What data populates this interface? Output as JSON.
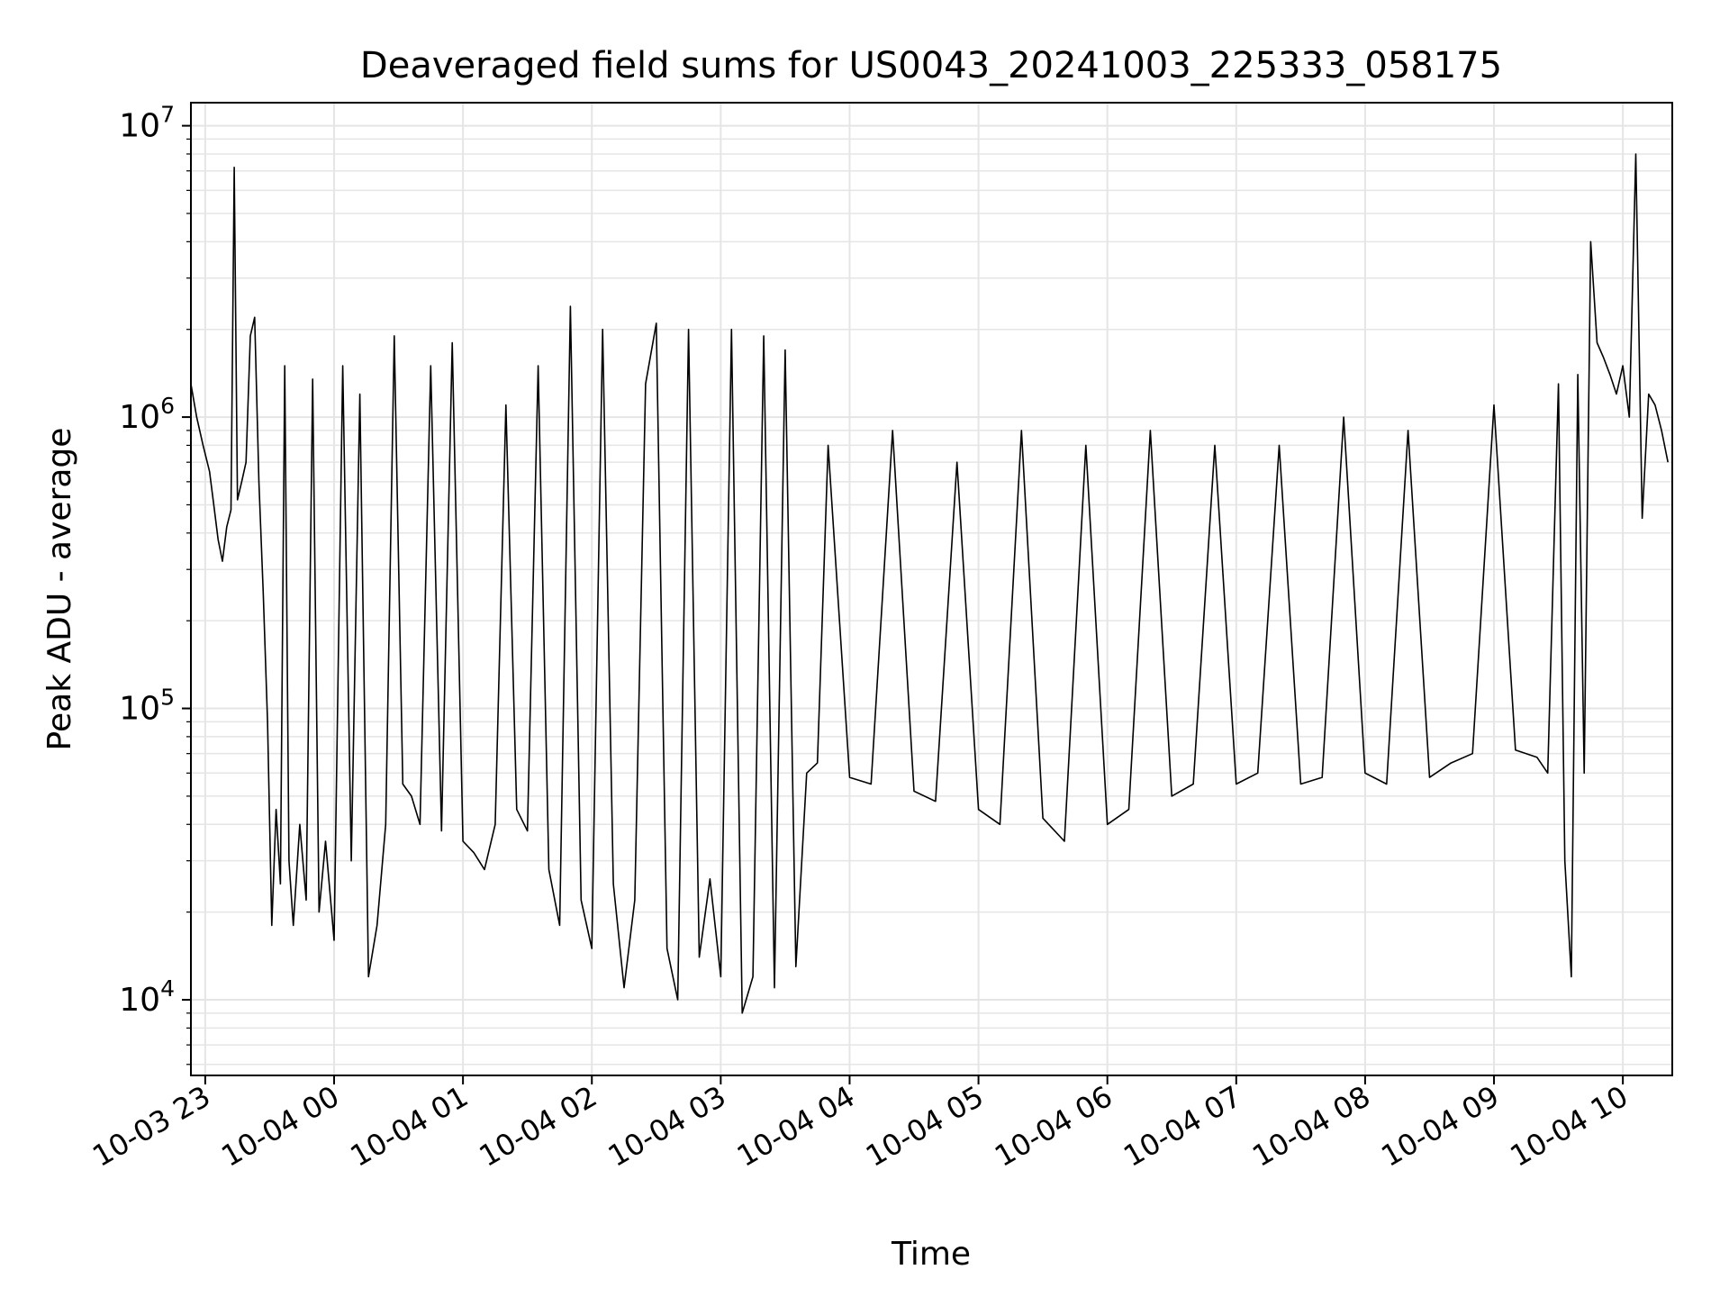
{
  "chart_data": {
    "type": "line",
    "title": "Deaveraged field sums for US0043_20241003_225333_058175",
    "xlabel": "Time",
    "ylabel": "Peak ADU - average",
    "yscale": "log",
    "ylim": [
      5500,
      12000000
    ],
    "xlim": [
      "2024-10-03 22:53:20",
      "2024-10-04 10:23:00"
    ],
    "x_ticks": [
      {
        "value": "2024-10-03 23:00",
        "label": "10-03 23"
      },
      {
        "value": "2024-10-04 00:00",
        "label": "10-04 00"
      },
      {
        "value": "2024-10-04 01:00",
        "label": "10-04 01"
      },
      {
        "value": "2024-10-04 02:00",
        "label": "10-04 02"
      },
      {
        "value": "2024-10-04 03:00",
        "label": "10-04 03"
      },
      {
        "value": "2024-10-04 04:00",
        "label": "10-04 04"
      },
      {
        "value": "2024-10-04 05:00",
        "label": "10-04 05"
      },
      {
        "value": "2024-10-04 06:00",
        "label": "10-04 06"
      },
      {
        "value": "2024-10-04 07:00",
        "label": "10-04 07"
      },
      {
        "value": "2024-10-04 08:00",
        "label": "10-04 08"
      },
      {
        "value": "2024-10-04 09:00",
        "label": "10-04 09"
      },
      {
        "value": "2024-10-04 10:00",
        "label": "10-04 10"
      }
    ],
    "y_ticks": [
      {
        "value": 10000,
        "base": "10",
        "exp": "4"
      },
      {
        "value": 100000,
        "base": "10",
        "exp": "5"
      },
      {
        "value": 1000000,
        "base": "10",
        "exp": "6"
      },
      {
        "value": 10000000,
        "base": "10",
        "exp": "7"
      }
    ],
    "grid": true,
    "minor_grid": true,
    "series_color": "#000000",
    "grid_color": "#e5e5e5",
    "series": [
      {
        "x": [
          "2024-10-03 22:53:20",
          "2024-10-03 22:56:00",
          "2024-10-03 22:59:00",
          "2024-10-03 23:02:00",
          "2024-10-03 23:04:00",
          "2024-10-03 23:06:00",
          "2024-10-03 23:08:00",
          "2024-10-03 23:10:00",
          "2024-10-03 23:12:00",
          "2024-10-03 23:13:30",
          "2024-10-03 23:15:00",
          "2024-10-03 23:17:00",
          "2024-10-03 23:19:00",
          "2024-10-03 23:21:00",
          "2024-10-03 23:23:00",
          "2024-10-03 23:25:00",
          "2024-10-03 23:27:00",
          "2024-10-03 23:29:00",
          "2024-10-03 23:31:00",
          "2024-10-03 23:33:00",
          "2024-10-03 23:35:00",
          "2024-10-03 23:37:00",
          "2024-10-03 23:39:00",
          "2024-10-03 23:41:00",
          "2024-10-03 23:44:00",
          "2024-10-03 23:47:00",
          "2024-10-03 23:50:00",
          "2024-10-03 23:53:00",
          "2024-10-03 23:56:00",
          "2024-10-04 00:00:00",
          "2024-10-04 00:04:00",
          "2024-10-04 00:08:00",
          "2024-10-04 00:12:00",
          "2024-10-04 00:16:00",
          "2024-10-04 00:20:00",
          "2024-10-04 00:24:00",
          "2024-10-04 00:28:00",
          "2024-10-04 00:32:00",
          "2024-10-04 00:36:00",
          "2024-10-04 00:40:00",
          "2024-10-04 00:45:00",
          "2024-10-04 00:50:00",
          "2024-10-04 00:55:00",
          "2024-10-04 01:00:00",
          "2024-10-04 01:05:00",
          "2024-10-04 01:10:00",
          "2024-10-04 01:15:00",
          "2024-10-04 01:20:00",
          "2024-10-04 01:25:00",
          "2024-10-04 01:30:00",
          "2024-10-04 01:35:00",
          "2024-10-04 01:40:00",
          "2024-10-04 01:45:00",
          "2024-10-04 01:50:00",
          "2024-10-04 01:55:00",
          "2024-10-04 02:00:00",
          "2024-10-04 02:05:00",
          "2024-10-04 02:10:00",
          "2024-10-04 02:15:00",
          "2024-10-04 02:20:00",
          "2024-10-04 02:25:00",
          "2024-10-04 02:30:00",
          "2024-10-04 02:35:00",
          "2024-10-04 02:40:00",
          "2024-10-04 02:45:00",
          "2024-10-04 02:50:00",
          "2024-10-04 02:55:00",
          "2024-10-04 03:00:00",
          "2024-10-04 03:05:00",
          "2024-10-04 03:10:00",
          "2024-10-04 03:15:00",
          "2024-10-04 03:20:00",
          "2024-10-04 03:25:00",
          "2024-10-04 03:30:00",
          "2024-10-04 03:35:00",
          "2024-10-04 03:40:00",
          "2024-10-04 03:45:00",
          "2024-10-04 03:50:00",
          "2024-10-04 04:00:00",
          "2024-10-04 04:10:00",
          "2024-10-04 04:20:00",
          "2024-10-04 04:30:00",
          "2024-10-04 04:40:00",
          "2024-10-04 04:50:00",
          "2024-10-04 05:00:00",
          "2024-10-04 05:10:00",
          "2024-10-04 05:20:00",
          "2024-10-04 05:30:00",
          "2024-10-04 05:40:00",
          "2024-10-04 05:50:00",
          "2024-10-04 06:00:00",
          "2024-10-04 06:10:00",
          "2024-10-04 06:20:00",
          "2024-10-04 06:30:00",
          "2024-10-04 06:40:00",
          "2024-10-04 06:50:00",
          "2024-10-04 07:00:00",
          "2024-10-04 07:10:00",
          "2024-10-04 07:20:00",
          "2024-10-04 07:30:00",
          "2024-10-04 07:40:00",
          "2024-10-04 07:50:00",
          "2024-10-04 08:00:00",
          "2024-10-04 08:10:00",
          "2024-10-04 08:20:00",
          "2024-10-04 08:30:00",
          "2024-10-04 08:40:00",
          "2024-10-04 08:50:00",
          "2024-10-04 09:00:00",
          "2024-10-04 09:10:00",
          "2024-10-04 09:20:00",
          "2024-10-04 09:25:00",
          "2024-10-04 09:30:00",
          "2024-10-04 09:33:00",
          "2024-10-04 09:36:00",
          "2024-10-04 09:39:00",
          "2024-10-04 09:42:00",
          "2024-10-04 09:45:00",
          "2024-10-04 09:48:00",
          "2024-10-04 09:51:00",
          "2024-10-04 09:54:00",
          "2024-10-04 09:57:00",
          "2024-10-04 10:00:00",
          "2024-10-04 10:03:00",
          "2024-10-04 10:06:00",
          "2024-10-04 10:09:00",
          "2024-10-04 10:12:00",
          "2024-10-04 10:15:00",
          "2024-10-04 10:18:00",
          "2024-10-04 10:21:00"
        ],
        "y": [
          1300000,
          1000000,
          800000,
          650000,
          500000,
          380000,
          320000,
          420000,
          480000,
          7200000,
          520000,
          600000,
          700000,
          1900000,
          2200000,
          600000,
          250000,
          90000,
          18000,
          45000,
          25000,
          1500000,
          30000,
          18000,
          40000,
          22000,
          1350000,
          20000,
          35000,
          16000,
          1500000,
          30000,
          1200000,
          12000,
          18000,
          40000,
          1900000,
          55000,
          50000,
          40000,
          1500000,
          38000,
          1800000,
          35000,
          32000,
          28000,
          40000,
          1100000,
          45000,
          38000,
          1500000,
          28000,
          18000,
          2400000,
          22000,
          15000,
          2000000,
          25000,
          11000,
          22000,
          1300000,
          2100000,
          15000,
          10000,
          2000000,
          14000,
          26000,
          12000,
          2000000,
          9000,
          12000,
          1900000,
          11000,
          1700000,
          13000,
          60000,
          65000,
          800000,
          58000,
          55000,
          900000,
          52000,
          48000,
          700000,
          45000,
          40000,
          900000,
          42000,
          35000,
          800000,
          40000,
          45000,
          900000,
          50000,
          55000,
          800000,
          55000,
          60000,
          800000,
          55000,
          58000,
          1000000,
          60000,
          55000,
          900000,
          58000,
          65000,
          70000,
          1100000,
          72000,
          68000,
          60000,
          1300000,
          30000,
          12000,
          1400000,
          60000,
          4000000,
          1800000,
          1600000,
          1400000,
          1200000,
          1500000,
          1000000,
          8000000,
          450000,
          1200000,
          1100000,
          900000,
          700000
        ]
      }
    ]
  }
}
